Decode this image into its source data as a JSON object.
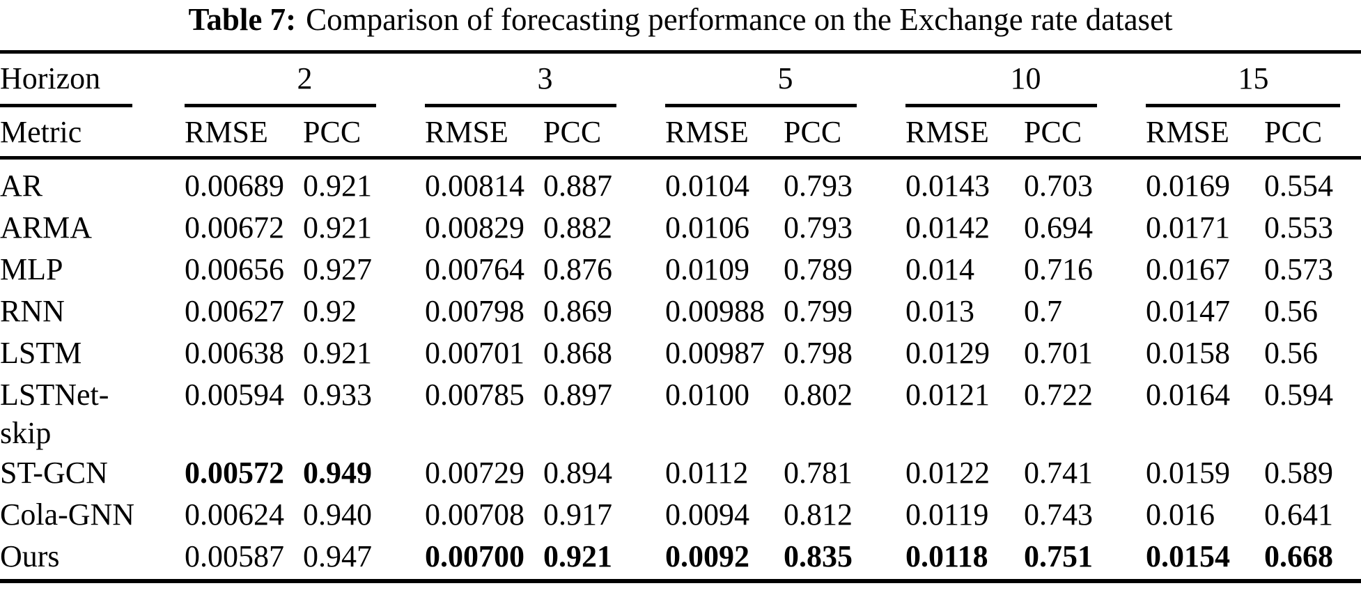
{
  "caption": {
    "label": "Table 7:",
    "text": "Comparison of forecasting performance on the Exchange rate dataset"
  },
  "table": {
    "header": {
      "row1_label": "Horizon",
      "row2_label": "Metric",
      "horizons": [
        "2",
        "3",
        "5",
        "10",
        "15"
      ],
      "metrics": [
        "RMSE",
        "PCC"
      ]
    },
    "rows": [
      {
        "model": "AR",
        "values": [
          "0.00689",
          "0.921",
          "0.00814",
          "0.887",
          "0.0104",
          "0.793",
          "0.0143",
          "0.703",
          "0.0169",
          "0.554"
        ],
        "bold": []
      },
      {
        "model": "ARMA",
        "values": [
          "0.00672",
          "0.921",
          "0.00829",
          "0.882",
          "0.0106",
          "0.793",
          "0.0142",
          "0.694",
          "0.0171",
          "0.553"
        ],
        "bold": []
      },
      {
        "model": "MLP",
        "values": [
          "0.00656",
          "0.927",
          "0.00764",
          "0.876",
          "0.0109",
          "0.789",
          "0.014",
          "0.716",
          "0.0167",
          "0.573"
        ],
        "bold": []
      },
      {
        "model": "RNN",
        "values": [
          "0.00627",
          "0.92",
          "0.00798",
          "0.869",
          "0.00988",
          "0.799",
          "0.013",
          "0.7",
          "0.0147",
          "0.56"
        ],
        "bold": []
      },
      {
        "model": "LSTM",
        "values": [
          "0.00638",
          "0.921",
          "0.00701",
          "0.868",
          "0.00987",
          "0.798",
          "0.0129",
          "0.701",
          "0.0158",
          "0.56"
        ],
        "bold": []
      },
      {
        "model": "LSTNet-skip",
        "values": [
          "0.00594",
          "0.933",
          "0.00785",
          "0.897",
          "0.0100",
          "0.802",
          "0.0121",
          "0.722",
          "0.0164",
          "0.594"
        ],
        "bold": []
      },
      {
        "model": "ST-GCN",
        "values": [
          "0.00572",
          "0.949",
          "0.00729",
          "0.894",
          "0.0112",
          "0.781",
          "0.0122",
          "0.741",
          "0.0159",
          "0.589"
        ],
        "bold": [
          0,
          1
        ]
      },
      {
        "model": "Cola-GNN",
        "values": [
          "0.00624",
          "0.940",
          "0.00708",
          "0.917",
          "0.0094",
          "0.812",
          "0.0119",
          "0.743",
          "0.016",
          "0.641"
        ],
        "bold": []
      },
      {
        "model": "Ours",
        "values": [
          "0.00587",
          "0.947",
          "0.00700",
          "0.921",
          "0.0092",
          "0.835",
          "0.0118",
          "0.751",
          "0.0154",
          "0.668"
        ],
        "bold": [
          2,
          3,
          4,
          5,
          6,
          7,
          8,
          9
        ]
      }
    ]
  }
}
